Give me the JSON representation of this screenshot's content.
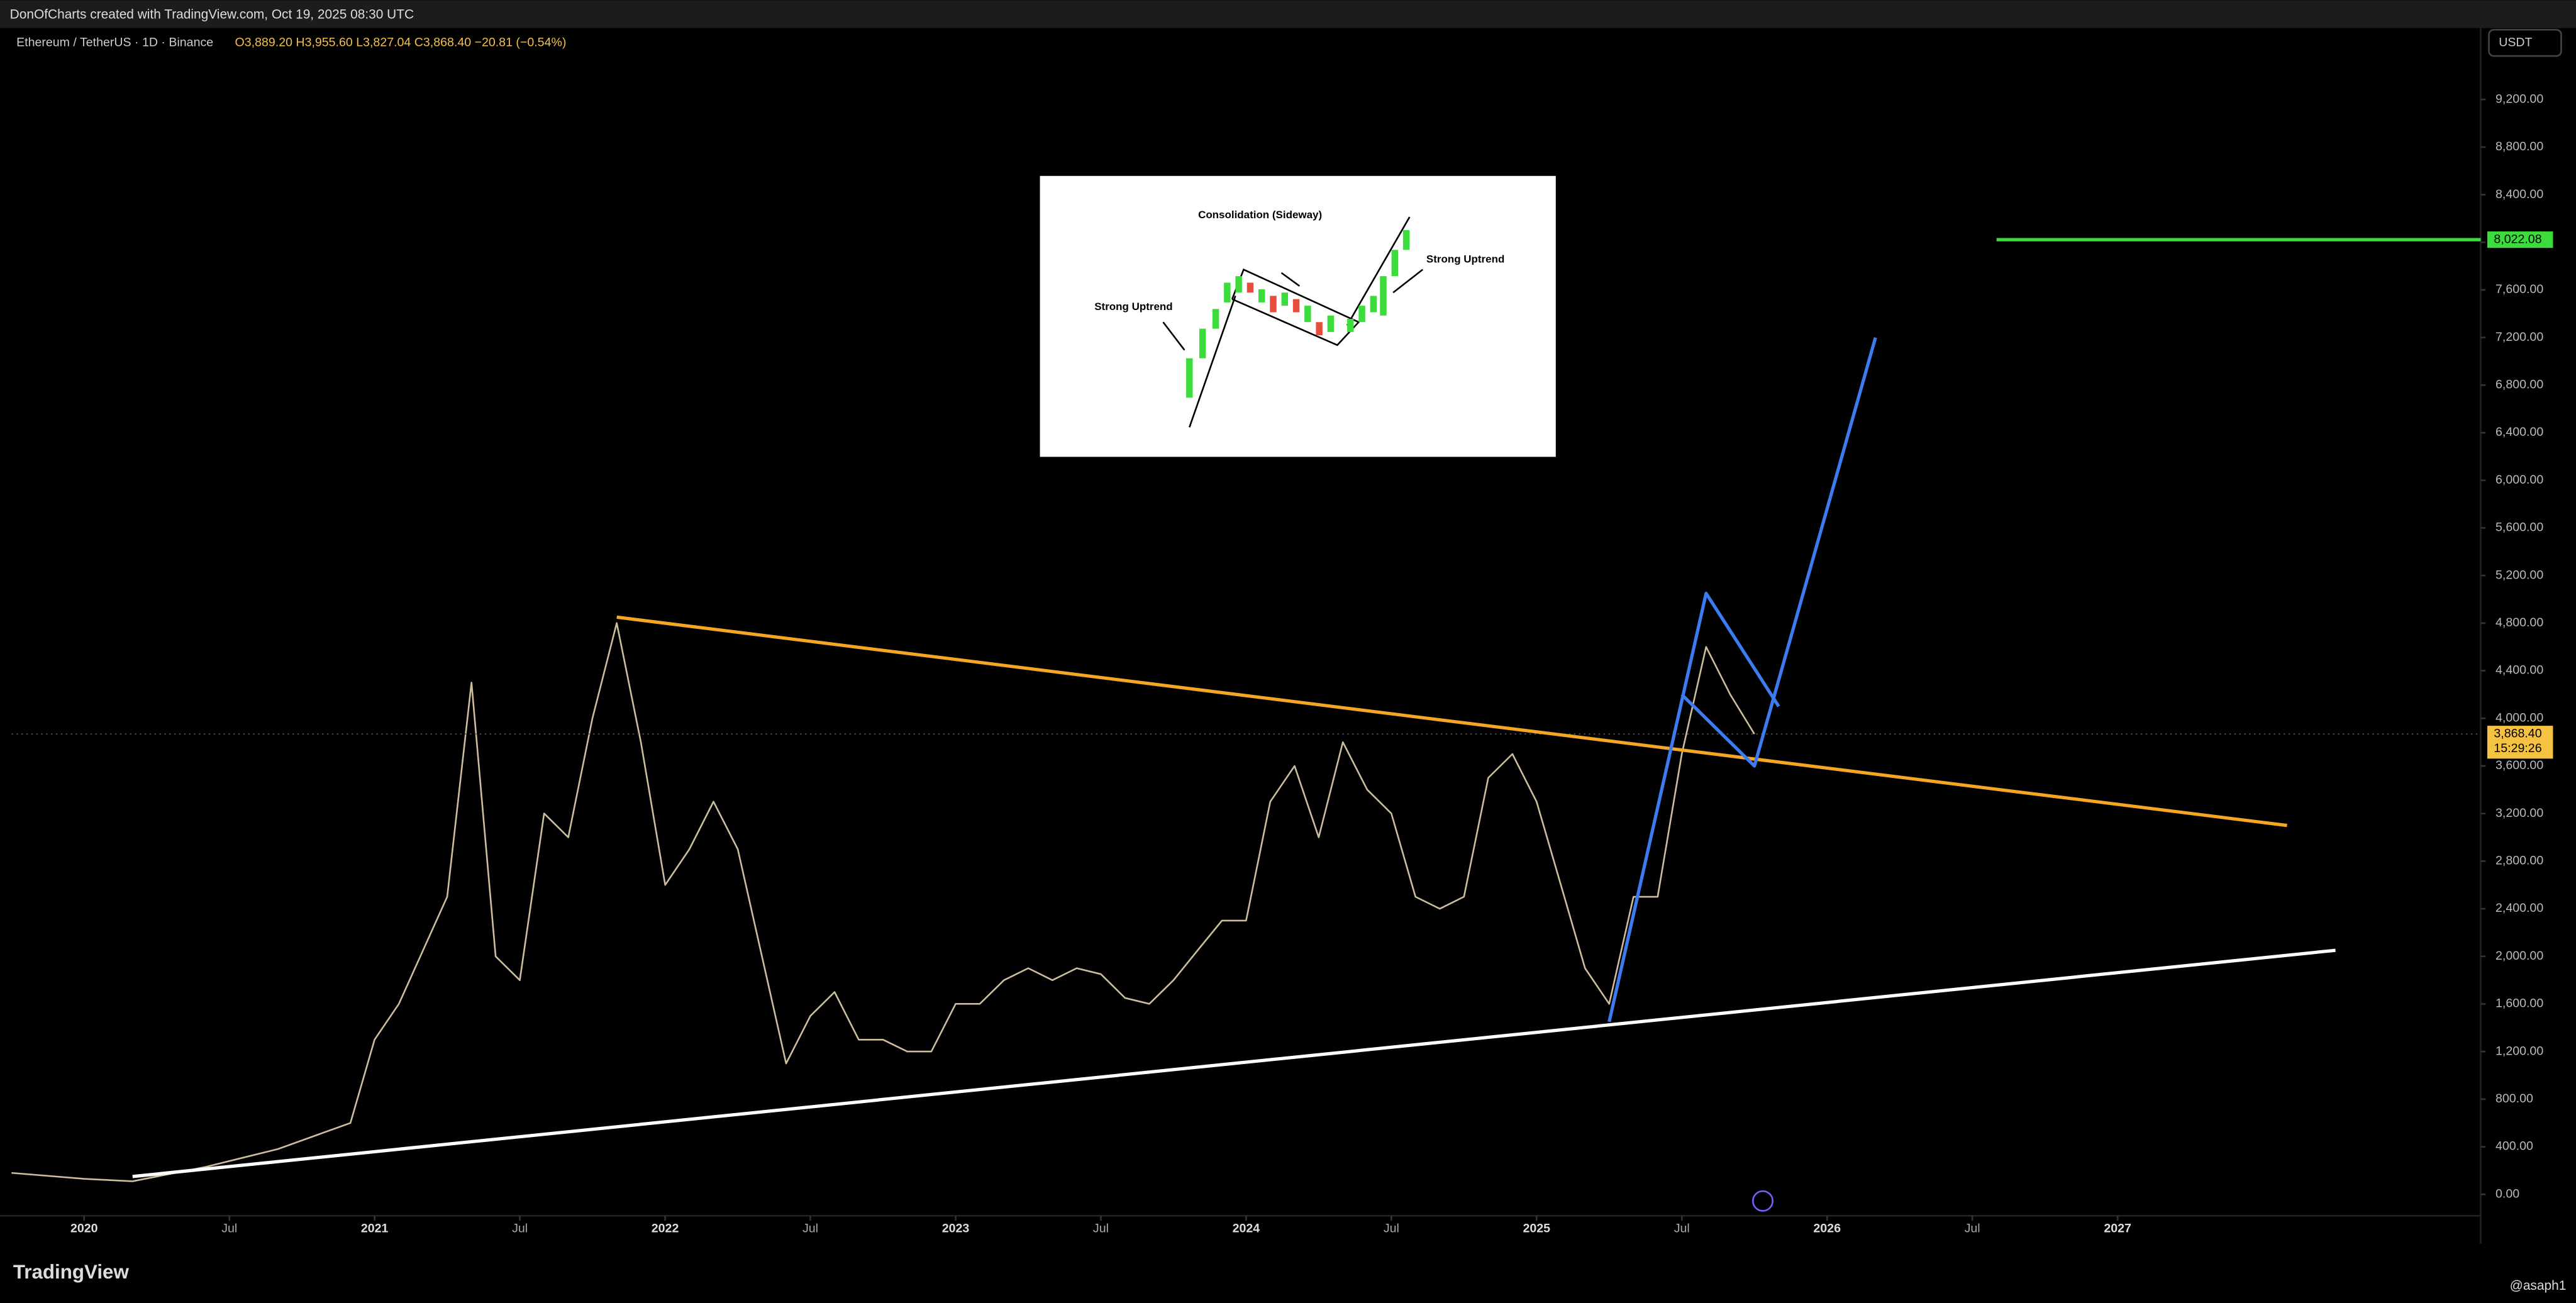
{
  "header": {
    "title": "DonOfCharts created with TradingView.com, Oct 19, 2025 08:30 UTC"
  },
  "legend": {
    "symbol": "Ethereum / TetherUS · 1D · Binance",
    "ohlc": "O3,889.20 H3,955.60 L3,827.04 C3,868.40 −20.81 (−0.54%)"
  },
  "currency": "USDT",
  "brand": "TradingView",
  "author": "@asaph1",
  "chart_data": {
    "type": "line",
    "xlim": [
      "2019-10",
      "2028-04"
    ],
    "ylim": [
      -180,
      9800
    ],
    "xticks": [
      {
        "value": "2020-01",
        "label": "2020"
      },
      {
        "value": "2020-07",
        "label": "Jul"
      },
      {
        "value": "2021-01",
        "label": "2021"
      },
      {
        "value": "2021-07",
        "label": "Jul"
      },
      {
        "value": "2022-01",
        "label": "2022"
      },
      {
        "value": "2022-07",
        "label": "Jul"
      },
      {
        "value": "2023-01",
        "label": "2023"
      },
      {
        "value": "2023-07",
        "label": "Jul"
      },
      {
        "value": "2024-01",
        "label": "2024"
      },
      {
        "value": "2024-07",
        "label": "Jul"
      },
      {
        "value": "2025-01",
        "label": "2025"
      },
      {
        "value": "2025-07",
        "label": "Jul"
      },
      {
        "value": "2026-01",
        "label": "2026"
      },
      {
        "value": "2026-07",
        "label": "Jul"
      },
      {
        "value": "2027-01",
        "label": "2027"
      }
    ],
    "yticks": [
      {
        "value": 0,
        "label": "0.00"
      },
      {
        "value": 400,
        "label": "400.00"
      },
      {
        "value": 800,
        "label": "800.00"
      },
      {
        "value": 1200,
        "label": "1,200.00"
      },
      {
        "value": 1600,
        "label": "1,600.00"
      },
      {
        "value": 2000,
        "label": "2,000.00"
      },
      {
        "value": 2400,
        "label": "2,400.00"
      },
      {
        "value": 2800,
        "label": "2,800.00"
      },
      {
        "value": 3200,
        "label": "3,200.00"
      },
      {
        "value": 3600,
        "label": "3,600.00"
      },
      {
        "value": 4000,
        "label": "4,000.00"
      },
      {
        "value": 4400,
        "label": "4,400.00"
      },
      {
        "value": 4800,
        "label": "4,800.00"
      },
      {
        "value": 5200,
        "label": "5,200.00"
      },
      {
        "value": 5600,
        "label": "5,600.00"
      },
      {
        "value": 6000,
        "label": "6,000.00"
      },
      {
        "value": 6400,
        "label": "6,400.00"
      },
      {
        "value": 6800,
        "label": "6,800.00"
      },
      {
        "value": 7200,
        "label": "7,200.00"
      },
      {
        "value": 7600,
        "label": "7,600.00"
      },
      {
        "value": 8000,
        "label": "8,000.00"
      },
      {
        "value": 8400,
        "label": "8,400.00"
      },
      {
        "value": 8800,
        "label": "8,800.00"
      },
      {
        "value": 9200,
        "label": "9,200.00"
      }
    ],
    "series": [
      {
        "name": "ETHUSDT",
        "color": "#cdbd9c",
        "x": [
          "2019-10",
          "2020-01",
          "2020-03",
          "2020-06",
          "2020-09",
          "2020-12",
          "2021-01",
          "2021-02",
          "2021-04",
          "2021-05",
          "2021-06",
          "2021-07",
          "2021-08",
          "2021-09",
          "2021-10",
          "2021-11",
          "2021-12",
          "2022-01",
          "2022-02",
          "2022-03",
          "2022-04",
          "2022-05",
          "2022-06",
          "2022-07",
          "2022-08",
          "2022-09",
          "2022-10",
          "2022-11",
          "2022-12",
          "2023-01",
          "2023-02",
          "2023-03",
          "2023-04",
          "2023-05",
          "2023-06",
          "2023-07",
          "2023-08",
          "2023-09",
          "2023-10",
          "2023-11",
          "2023-12",
          "2024-01",
          "2024-02",
          "2024-03",
          "2024-04",
          "2024-05",
          "2024-06",
          "2024-07",
          "2024-08",
          "2024-09",
          "2024-10",
          "2024-11",
          "2024-12",
          "2025-01",
          "2025-02",
          "2025-03",
          "2025-04",
          "2025-05",
          "2025-06",
          "2025-07",
          "2025-08",
          "2025-09",
          "2025-10"
        ],
        "values": [
          180,
          130,
          110,
          230,
          380,
          600,
          1300,
          1600,
          2500,
          4300,
          2000,
          1800,
          3200,
          3000,
          4000,
          4800,
          3800,
          2600,
          2900,
          3300,
          2900,
          2000,
          1100,
          1500,
          1700,
          1300,
          1300,
          1200,
          1200,
          1600,
          1600,
          1800,
          1900,
          1800,
          1900,
          1850,
          1650,
          1600,
          1800,
          2050,
          2300,
          2300,
          3300,
          3600,
          3000,
          3800,
          3400,
          3200,
          2500,
          2400,
          2500,
          3500,
          3700,
          3300,
          2600,
          1900,
          1600,
          2500,
          2500,
          3700,
          4600,
          4200,
          3868.4
        ]
      }
    ],
    "drawings": [
      {
        "color": "#f5a623",
        "x": [
          "2021-11",
          "2027-08"
        ],
        "values": [
          4850,
          3100
        ]
      },
      {
        "color": "#ffffff",
        "x": [
          "2020-03",
          "2027-10"
        ],
        "values": [
          150,
          2050
        ]
      },
      {
        "color": "#3d7bf0",
        "x": [
          "2025-04",
          "2025-08",
          "2025-11"
        ],
        "values": [
          1450,
          5050,
          4100
        ]
      },
      {
        "color": "#3d7bf0",
        "x": [
          "2025-07",
          "2025-10",
          "2026-03"
        ],
        "values": [
          4200,
          3600,
          7200
        ]
      },
      {
        "color": "#3ddc3d",
        "x": [
          "2026-08",
          "2028-04"
        ],
        "values": [
          8022.08,
          8022.08
        ],
        "label": "8,022.08"
      }
    ],
    "last_price": {
      "value": 3868.4,
      "label": "3,868.40",
      "countdown": "15:29:26"
    }
  },
  "inset": {
    "consolidation": "Consolidation (Sideway)",
    "left_label": "Strong Uptrend",
    "right_label": "Strong Uptrend"
  }
}
